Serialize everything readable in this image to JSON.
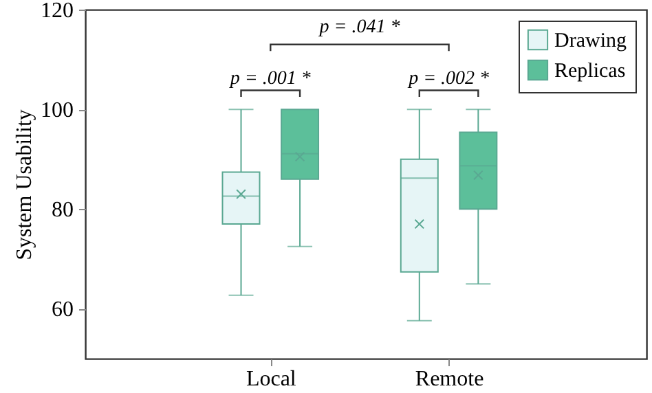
{
  "chart_data": {
    "type": "box",
    "ylabel": "System Usability",
    "categories": [
      "Local",
      "Remote"
    ],
    "series": [
      {
        "name": "Drawing",
        "color": "#e6f5f6",
        "boxes": [
          {
            "low": 62.7,
            "q1": 77,
            "median": 82.6,
            "q3": 87.4,
            "high": 100,
            "mean": 83
          },
          {
            "low": 57.6,
            "q1": 67.4,
            "median": 86.2,
            "q3": 90,
            "high": 100,
            "mean": 77
          }
        ]
      },
      {
        "name": "Replicas",
        "color": "#5cbf9a",
        "boxes": [
          {
            "low": 72.5,
            "q1": 86,
            "median": 91.1,
            "q3": 100,
            "high": 100,
            "mean": 90.5
          },
          {
            "low": 65,
            "q1": 80,
            "median": 88.7,
            "q3": 95.4,
            "high": 100,
            "mean": 86.8
          }
        ]
      }
    ],
    "ylim": [
      50,
      120
    ],
    "yticks": [
      60,
      80,
      100,
      120
    ],
    "legend": "top right",
    "annotations": [
      "p = .041 *",
      "p = .001 *",
      "p = .002 *"
    ]
  }
}
